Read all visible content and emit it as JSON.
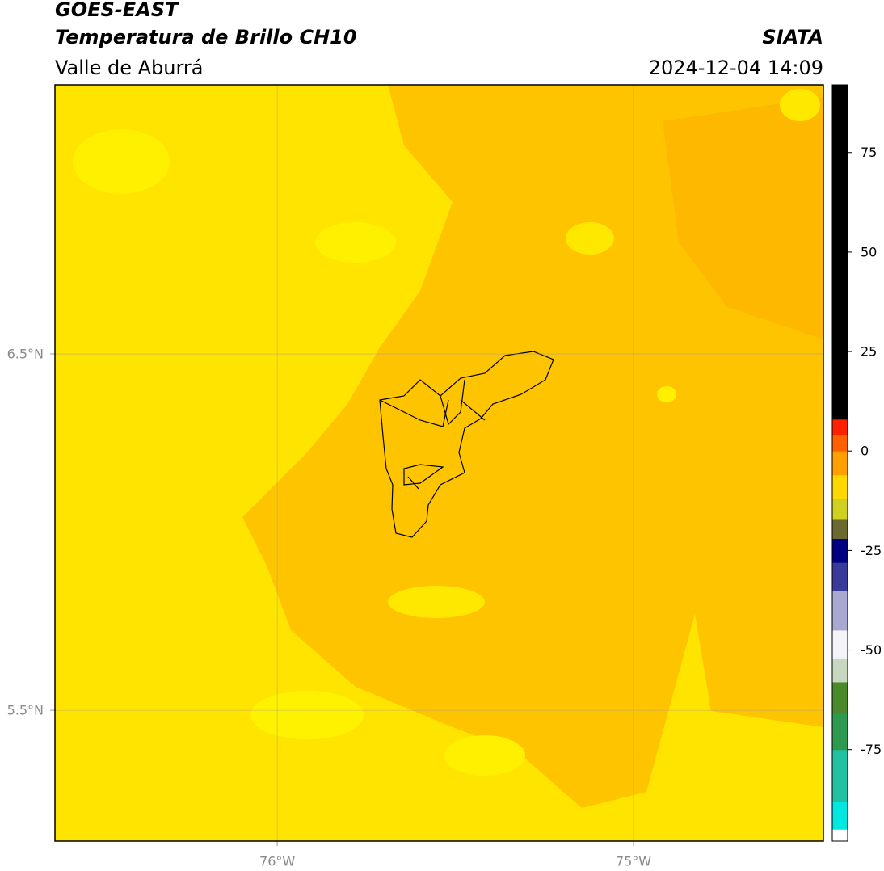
{
  "header": {
    "title": "GOES-EAST",
    "subtitle": "Temperatura de Brillo CH10",
    "source": "SIATA",
    "region": "Valle de Aburrá",
    "timestamp": "2024-12-04 14:09"
  },
  "map": {
    "xlim": [
      -76.624,
      -74.467
    ],
    "ylim": [
      5.133,
      7.255
    ],
    "xticks": [
      {
        "value": -76,
        "label": "76°W"
      },
      {
        "value": -75,
        "label": "75°W"
      }
    ],
    "yticks": [
      {
        "value": 5.5,
        "label": "5.5°N"
      },
      {
        "value": 6.5,
        "label": "6.5°N"
      }
    ],
    "grid": true
  },
  "colorbar": {
    "lim": [
      -98,
      92
    ],
    "ticks": [
      -75,
      -50,
      -25,
      0,
      25,
      50,
      75
    ],
    "segments": [
      {
        "from": -98,
        "to": -95,
        "color": "#ffffff"
      },
      {
        "from": -95,
        "to": -88,
        "color": "#00e8e0"
      },
      {
        "from": -88,
        "to": -75,
        "color": "#20c0a0"
      },
      {
        "from": -75,
        "to": -66,
        "color": "#2e9a50"
      },
      {
        "from": -66,
        "to": -58,
        "color": "#4a8a2a"
      },
      {
        "from": -58,
        "to": -52,
        "color": "#c8d8c0"
      },
      {
        "from": -52,
        "to": -45,
        "color": "#f4f4f8"
      },
      {
        "from": -45,
        "to": -35,
        "color": "#a8a8d0"
      },
      {
        "from": -35,
        "to": -28,
        "color": "#3a3a9a"
      },
      {
        "from": -28,
        "to": -22,
        "color": "#000080"
      },
      {
        "from": -22,
        "to": -17,
        "color": "#6a6a30"
      },
      {
        "from": -17,
        "to": -12,
        "color": "#d0d020"
      },
      {
        "from": -12,
        "to": -6,
        "color": "#ffd800"
      },
      {
        "from": -6,
        "to": 0,
        "color": "#ffa000"
      },
      {
        "from": 0,
        "to": 4,
        "color": "#ff6000"
      },
      {
        "from": 4,
        "to": 8,
        "color": "#ff2000"
      },
      {
        "from": 8,
        "to": 92,
        "color": "#000000"
      }
    ]
  }
}
